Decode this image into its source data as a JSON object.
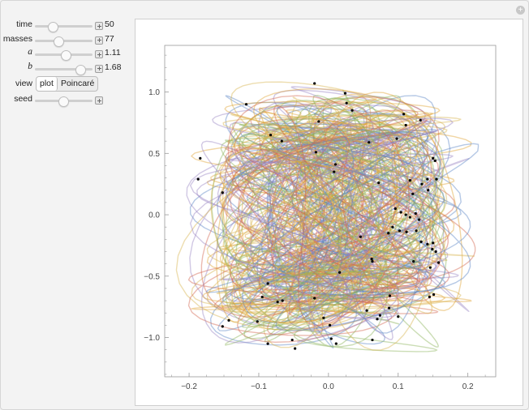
{
  "controls": {
    "sliders": [
      {
        "id": "time",
        "label": "time",
        "italic": false,
        "value_text": "50",
        "fraction": 0.3
      },
      {
        "id": "masses",
        "label": "masses",
        "italic": false,
        "value_text": "77",
        "fraction": 0.4
      },
      {
        "id": "a",
        "label": "a",
        "italic": true,
        "value_text": "1.11",
        "fraction": 0.52
      },
      {
        "id": "b",
        "label": "b",
        "italic": true,
        "value_text": "1.68",
        "fraction": 0.77
      }
    ],
    "view": {
      "label": "view",
      "options": [
        "plot",
        "Poincaré"
      ],
      "selected": "plot"
    },
    "seed": {
      "label": "seed",
      "fraction": 0.48
    }
  },
  "chart_data": {
    "type": "line",
    "xlim": [
      -0.235,
      0.24
    ],
    "ylim": [
      -1.32,
      1.38
    ],
    "x_ticks": [
      -0.2,
      -0.1,
      0.0,
      0.1,
      0.2
    ],
    "x_tick_labels": [
      "−0.2",
      "−0.1",
      "0.0",
      "0.1",
      "0.2"
    ],
    "y_ticks": [
      -1.0,
      -0.5,
      0.0,
      0.5,
      1.0
    ],
    "y_tick_labels": [
      "−1.0",
      "−0.5",
      "0.0",
      "0.5",
      "1.0"
    ],
    "grid": false,
    "series_colors": [
      "#5b86c5",
      "#e0a535",
      "#8cb35a",
      "#d2654f",
      "#9a85c4",
      "#d8b34d"
    ],
    "series_count": 77,
    "points": [
      [
        -0.184,
        0.46
      ],
      [
        -0.187,
        0.29
      ],
      [
        -0.152,
        0.18
      ],
      [
        -0.118,
        0.9
      ],
      [
        -0.083,
        0.65
      ],
      [
        -0.067,
        0.6
      ],
      [
        -0.02,
        1.07
      ],
      [
        -0.014,
        0.76
      ],
      [
        -0.018,
        0.51
      ],
      [
        0.01,
        0.41
      ],
      [
        0.008,
        0.35
      ],
      [
        0.024,
        0.99
      ],
      [
        0.026,
        0.91
      ],
      [
        0.034,
        0.85
      ],
      [
        0.058,
        0.59
      ],
      [
        0.072,
        0.26
      ],
      [
        0.098,
        0.62
      ],
      [
        0.108,
        0.82
      ],
      [
        0.111,
        0.73
      ],
      [
        0.132,
        0.77
      ],
      [
        0.117,
        0.28
      ],
      [
        0.121,
        0.17
      ],
      [
        0.134,
        0.25
      ],
      [
        0.143,
        0.2
      ],
      [
        0.142,
        0.29
      ],
      [
        0.15,
        0.46
      ],
      [
        0.153,
        0.44
      ],
      [
        0.155,
        0.29
      ],
      [
        0.096,
        0.05
      ],
      [
        0.104,
        0.02
      ],
      [
        0.111,
        0.0
      ],
      [
        0.117,
        -0.02
      ],
      [
        0.125,
        0.01
      ],
      [
        0.13,
        -0.04
      ],
      [
        0.092,
        -0.1
      ],
      [
        0.086,
        -0.15
      ],
      [
        0.102,
        -0.13
      ],
      [
        0.112,
        -0.14
      ],
      [
        0.126,
        -0.13
      ],
      [
        0.133,
        -0.22
      ],
      [
        0.142,
        -0.24
      ],
      [
        0.15,
        -0.23
      ],
      [
        0.149,
        -0.28
      ],
      [
        0.154,
        -0.3
      ],
      [
        0.158,
        -0.39
      ],
      [
        0.146,
        -0.43
      ],
      [
        0.122,
        -0.38
      ],
      [
        0.062,
        -0.36
      ],
      [
        0.063,
        -0.38
      ],
      [
        0.046,
        -0.18
      ],
      [
        0.016,
        -0.47
      ],
      [
        0.088,
        -0.66
      ],
      [
        0.087,
        -0.76
      ],
      [
        0.074,
        -0.82
      ],
      [
        0.055,
        -0.78
      ],
      [
        0.07,
        -0.85
      ],
      [
        0.1,
        -0.83
      ],
      [
        0.145,
        -0.67
      ],
      [
        0.151,
        -0.65
      ],
      [
        -0.02,
        -0.68
      ],
      [
        -0.066,
        -0.7
      ],
      [
        -0.073,
        -0.71
      ],
      [
        -0.087,
        -0.56
      ],
      [
        -0.095,
        -0.67
      ],
      [
        -0.102,
        -0.87
      ],
      [
        -0.143,
        -0.86
      ],
      [
        -0.152,
        -0.91
      ],
      [
        -0.087,
        -1.05
      ],
      [
        -0.048,
        -1.09
      ],
      [
        -0.052,
        -1.02
      ],
      [
        -0.007,
        -0.84
      ],
      [
        0.002,
        -0.9
      ],
      [
        0.004,
        -1.01
      ],
      [
        0.011,
        -1.05
      ],
      [
        0.063,
        -1.02
      ]
    ]
  }
}
